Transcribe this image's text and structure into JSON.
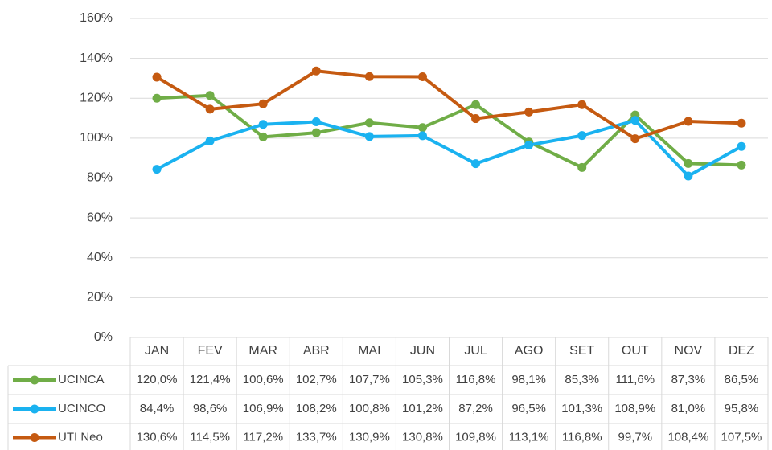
{
  "chart_data": {
    "type": "line",
    "categories": [
      "JAN",
      "FEV",
      "MAR",
      "ABR",
      "MAI",
      "JUN",
      "JUL",
      "AGO",
      "SET",
      "OUT",
      "NOV",
      "DEZ"
    ],
    "ylim": [
      0,
      160
    ],
    "yticks": [
      {
        "value": 0,
        "label": "0%"
      },
      {
        "value": 20,
        "label": "20%"
      },
      {
        "value": 40,
        "label": "40%"
      },
      {
        "value": 60,
        "label": "60%"
      },
      {
        "value": 80,
        "label": "80%"
      },
      {
        "value": 100,
        "label": "100%"
      },
      {
        "value": 120,
        "label": "120%"
      },
      {
        "value": 140,
        "label": "140%"
      },
      {
        "value": 160,
        "label": "160%"
      }
    ],
    "grid": true,
    "series": [
      {
        "name": "UCINCA",
        "color": "#70ad47",
        "values": [
          120.0,
          121.4,
          100.6,
          102.7,
          107.7,
          105.3,
          116.8,
          98.1,
          85.3,
          111.6,
          87.3,
          86.5
        ],
        "value_labels": [
          "120,0%",
          "121,4%",
          "100,6%",
          "102,7%",
          "107,7%",
          "105,3%",
          "116,8%",
          "98,1%",
          "85,3%",
          "111,6%",
          "87,3%",
          "86,5%"
        ]
      },
      {
        "name": "UCINCO",
        "color": "#1ab2f0",
        "values": [
          84.4,
          98.6,
          106.9,
          108.2,
          100.8,
          101.2,
          87.2,
          96.5,
          101.3,
          108.9,
          81.0,
          95.8
        ],
        "value_labels": [
          "84,4%",
          "98,6%",
          "106,9%",
          "108,2%",
          "100,8%",
          "101,2%",
          "87,2%",
          "96,5%",
          "101,3%",
          "108,9%",
          "81,0%",
          "95,8%"
        ]
      },
      {
        "name": "UTI Neo",
        "color": "#c55a11",
        "values": [
          130.6,
          114.5,
          117.2,
          133.7,
          130.9,
          130.8,
          109.8,
          113.1,
          116.8,
          99.7,
          108.4,
          107.5
        ],
        "value_labels": [
          "130,6%",
          "114,5%",
          "117,2%",
          "133,7%",
          "130,9%",
          "130,8%",
          "109,8%",
          "113,1%",
          "116,8%",
          "99,7%",
          "108,4%",
          "107,5%"
        ]
      }
    ]
  }
}
